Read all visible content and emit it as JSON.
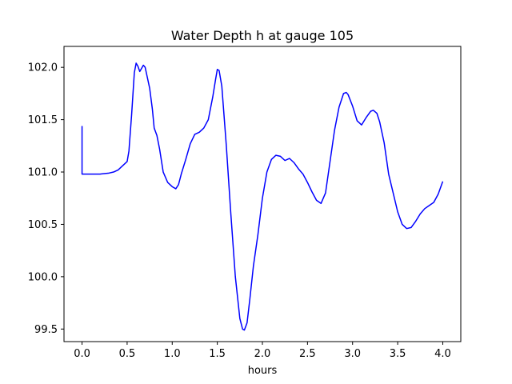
{
  "chart_data": {
    "type": "line",
    "title": "Water Depth h at gauge 105",
    "xlabel": "hours",
    "ylabel": "",
    "xlim": [
      -0.2,
      4.2
    ],
    "ylim": [
      99.38,
      102.2
    ],
    "xticks": [
      "0.0",
      "0.5",
      "1.0",
      "1.5",
      "2.0",
      "2.5",
      "3.0",
      "3.5",
      "4.0"
    ],
    "yticks": [
      "99.5",
      "100.0",
      "100.5",
      "101.0",
      "101.5",
      "102.0"
    ],
    "grid": false,
    "legend": "none",
    "series": [
      {
        "color": "#0000ff",
        "x": [
          0.0,
          0.0,
          0.01,
          0.1,
          0.2,
          0.3,
          0.35,
          0.4,
          0.45,
          0.5,
          0.52,
          0.55,
          0.58,
          0.6,
          0.62,
          0.64,
          0.66,
          0.68,
          0.7,
          0.72,
          0.75,
          0.78,
          0.8,
          0.83,
          0.86,
          0.9,
          0.95,
          1.0,
          1.04,
          1.07,
          1.1,
          1.15,
          1.2,
          1.25,
          1.3,
          1.35,
          1.4,
          1.45,
          1.48,
          1.5,
          1.52,
          1.55,
          1.6,
          1.65,
          1.7,
          1.75,
          1.78,
          1.8,
          1.83,
          1.86,
          1.9,
          1.95,
          2.0,
          2.05,
          2.1,
          2.15,
          2.2,
          2.25,
          2.3,
          2.35,
          2.4,
          2.45,
          2.5,
          2.55,
          2.6,
          2.65,
          2.7,
          2.75,
          2.8,
          2.85,
          2.9,
          2.93,
          2.95,
          3.0,
          3.05,
          3.1,
          3.15,
          3.2,
          3.23,
          3.27,
          3.3,
          3.35,
          3.4,
          3.45,
          3.5,
          3.55,
          3.6,
          3.65,
          3.7,
          3.75,
          3.8,
          3.85,
          3.9,
          3.95,
          4.0
        ],
        "values": [
          101.44,
          100.98,
          100.98,
          100.98,
          100.98,
          100.99,
          101.0,
          101.02,
          101.06,
          101.1,
          101.2,
          101.55,
          101.95,
          102.04,
          102.01,
          101.96,
          101.99,
          102.02,
          102.0,
          101.92,
          101.8,
          101.6,
          101.42,
          101.35,
          101.22,
          101.0,
          100.9,
          100.86,
          100.84,
          100.88,
          100.98,
          101.12,
          101.27,
          101.36,
          101.38,
          101.42,
          101.5,
          101.72,
          101.88,
          101.98,
          101.97,
          101.82,
          101.25,
          100.6,
          100.0,
          99.6,
          99.5,
          99.49,
          99.56,
          99.78,
          100.1,
          100.4,
          100.75,
          101.0,
          101.12,
          101.16,
          101.15,
          101.11,
          101.13,
          101.09,
          101.03,
          100.98,
          100.9,
          100.81,
          100.73,
          100.7,
          100.8,
          101.1,
          101.4,
          101.62,
          101.75,
          101.76,
          101.74,
          101.63,
          101.49,
          101.45,
          101.52,
          101.58,
          101.59,
          101.56,
          101.48,
          101.28,
          100.98,
          100.8,
          100.62,
          100.5,
          100.46,
          100.47,
          100.53,
          100.6,
          100.65,
          100.68,
          100.71,
          100.79,
          100.91
        ]
      }
    ]
  }
}
